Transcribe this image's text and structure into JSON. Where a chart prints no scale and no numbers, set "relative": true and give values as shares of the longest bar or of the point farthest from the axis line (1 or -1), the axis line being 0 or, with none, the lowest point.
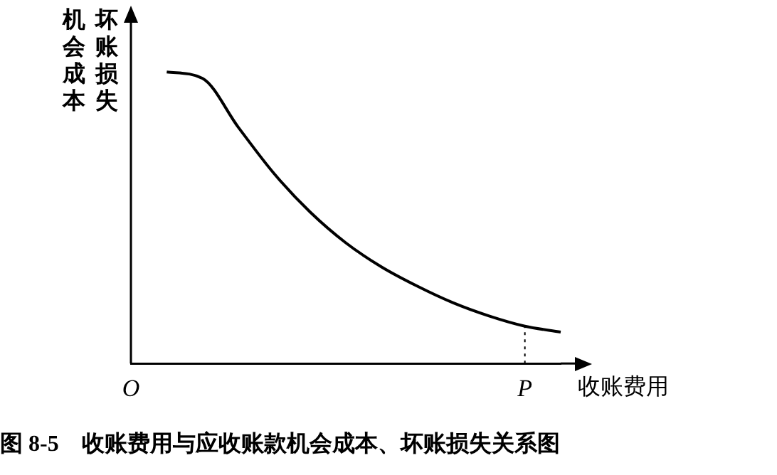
{
  "chart_data": {
    "type": "line",
    "relative": true,
    "xlabel": "收账费用",
    "ylabel": "机会成本坏账损失",
    "annotations": [
      "图 8-5　收账费用与应收账款机会成本、坏账损失关系图"
    ],
    "categories": [
      "O",
      null,
      null,
      null,
      null,
      null,
      null,
      null,
      null,
      null,
      null,
      "P",
      null
    ],
    "ref_lines": [
      {
        "axis": "x",
        "value": "P",
        "label": null,
        "line_style": "dotted"
      }
    ],
    "grid": false,
    "legend": false,
    "marker": "none",
    "line_style": "solid",
    "series": [
      {
        "color": "#000000",
        "values": [
          null,
          1,
          0.978,
          0.81,
          0.651,
          0.52,
          0.414,
          0.331,
          0.265,
          0.208,
          0.163,
          0.128,
          0.108
        ]
      }
    ]
  }
}
